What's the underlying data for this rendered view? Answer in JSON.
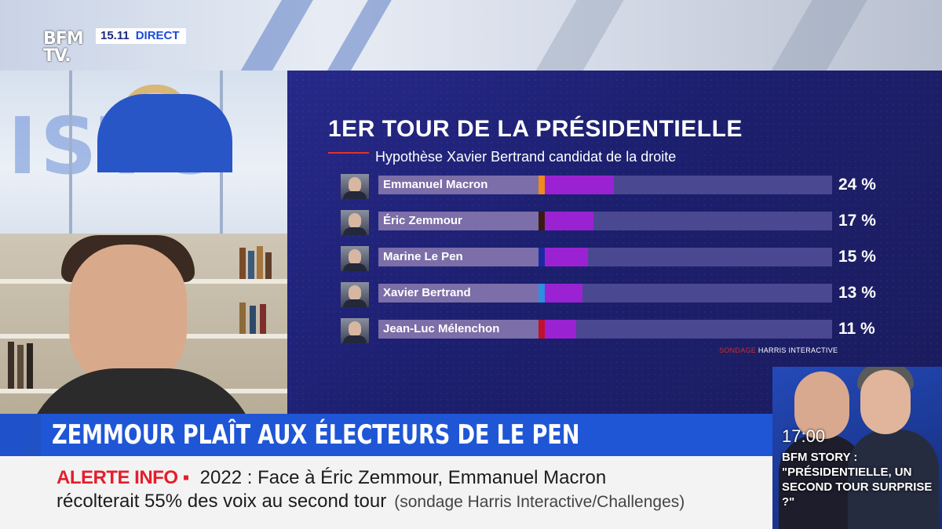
{
  "logo": {
    "line1": "BFM",
    "line2": "TV."
  },
  "clock": {
    "time": "15.11",
    "status": "DIRECT"
  },
  "backdrop_text": "ISTO",
  "chart_data": {
    "type": "bar",
    "title": "1ER TOUR DE LA PRÉSIDENTIELLE",
    "subtitle": "Hypothèse Xavier Bertrand candidat de la droite",
    "categories": [
      "Emmanuel Macron",
      "Éric Zemmour",
      "Marine Le Pen",
      "Xavier Bertrand",
      "Jean-Luc Mélenchon"
    ],
    "values": [
      24,
      17,
      15,
      13,
      11
    ],
    "value_labels": [
      "24 %",
      "17 %",
      "15 %",
      "13 %",
      "11 %"
    ],
    "party_colors": [
      "#f08a1c",
      "#3a1a10",
      "#1b2aa0",
      "#2c8fe0",
      "#c0122a"
    ],
    "bar_color": "#9a22d3",
    "xlim": [
      0,
      100
    ],
    "source_lead": "SONDAGE",
    "source_name": "HARRIS INTERACTIVE"
  },
  "headline": "ZEMMOUR PLAÎT AUX ÉLECTEURS DE LE PEN",
  "ticker": {
    "alert_label": "ALERTE INFO ▪",
    "line1": "2022 : Face à Éric Zemmour, Emmanuel Macron",
    "line2": "récolterait 55% des voix au second tour",
    "source": "(sondage Harris Interactive/Challenges)"
  },
  "next_program": {
    "time": "17:00",
    "show": "BFM STORY :",
    "title": "\"PRÉSIDENTIELLE, UN SECOND TOUR SURPRISE ?\""
  }
}
